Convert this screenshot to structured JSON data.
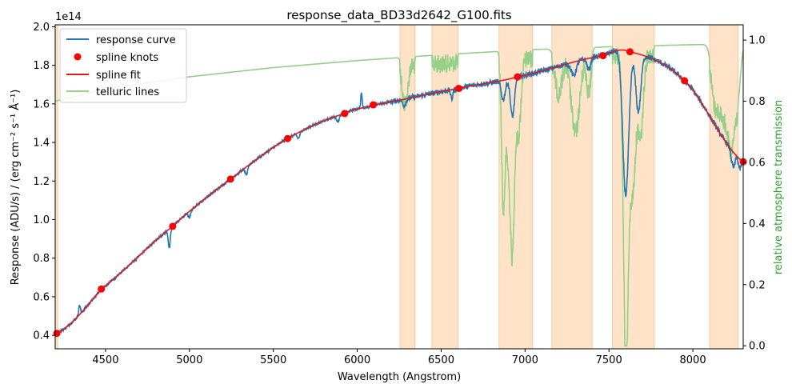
{
  "chart_data": {
    "type": "line",
    "title": "response_data_BD33d2642_G100.fits",
    "xlabel": "Wavelength (Angstrom)",
    "ylabel": "Response (ADU/s) / (erg cm⁻² s⁻¹ Å⁻¹)",
    "y2label": "relative atmosphere transmission",
    "offset_text": "1e14",
    "xlim": [
      4200,
      8300
    ],
    "ylim": [
      0.33,
      2.01
    ],
    "y2lim": [
      -0.01,
      1.05
    ],
    "x_ticks": [
      4500,
      5000,
      5500,
      6000,
      6500,
      7000,
      7500,
      8000
    ],
    "x_tick_labels": [
      "4500",
      "5000",
      "5500",
      "6000",
      "6500",
      "7000",
      "7500",
      "8000"
    ],
    "y_ticks": [
      0.4,
      0.6,
      0.8,
      1.0,
      1.2,
      1.4,
      1.6,
      1.8,
      2.0
    ],
    "y_tick_labels": [
      "0.4",
      "0.6",
      "0.8",
      "1.0",
      "1.2",
      "1.4",
      "1.6",
      "1.8",
      "2.0"
    ],
    "y2_ticks": [
      0.0,
      0.2,
      0.4,
      0.6,
      0.8,
      1.0
    ],
    "y2_tick_labels": [
      "0.0",
      "0.2",
      "0.4",
      "0.6",
      "0.8",
      "1.0"
    ],
    "legend": {
      "position": "top-left",
      "entries": [
        {
          "label": "response curve",
          "color": "#1f77b4",
          "style": "line"
        },
        {
          "label": "spline knots",
          "color": "#ff0000",
          "style": "marker"
        },
        {
          "label": "spline fit",
          "color": "#e31a1c",
          "style": "line"
        },
        {
          "label": "telluric lines",
          "color": "#95cf8a",
          "style": "line"
        }
      ]
    },
    "colors": {
      "response": "#1f77b4",
      "spline": "#e31a1c",
      "knots": "#ff0000",
      "telluric": "#95cf8a",
      "telluric_label": "#2ca02c",
      "bands": "#fdd9b5"
    },
    "masked_bands": [
      [
        4200,
        4215
      ],
      [
        6255,
        6345
      ],
      [
        6445,
        6600
      ],
      [
        6845,
        7045
      ],
      [
        7160,
        7400
      ],
      [
        7520,
        7770
      ],
      [
        8100,
        8270
      ]
    ],
    "spline_knots": {
      "x": [
        4210,
        4475,
        4900,
        5245,
        5585,
        5925,
        6095,
        6605,
        6955,
        7465,
        7625,
        7950,
        8300
      ],
      "y": [
        0.41,
        0.64,
        0.965,
        1.21,
        1.42,
        1.55,
        1.595,
        1.68,
        1.74,
        1.85,
        1.87,
        1.72,
        1.3
      ]
    },
    "response_features": [
      {
        "x": 4345,
        "dy": 0.05,
        "w": 5
      },
      {
        "x": 4880,
        "dy": -0.1,
        "w": 6
      },
      {
        "x": 5000,
        "dy": -0.03,
        "w": 8
      },
      {
        "x": 5340,
        "dy": -0.04,
        "w": 8
      },
      {
        "x": 5650,
        "dy": -0.03,
        "w": 8
      },
      {
        "x": 5885,
        "dy": -0.03,
        "w": 8
      },
      {
        "x": 6025,
        "dy": 0.08,
        "w": 4
      },
      {
        "x": 6280,
        "dy": -0.03,
        "w": 10
      },
      {
        "x": 6563,
        "dy": -0.05,
        "w": 6
      },
      {
        "x": 6870,
        "dy": -0.1,
        "w": 12
      },
      {
        "x": 6925,
        "dy": -0.2,
        "w": 12
      },
      {
        "x": 7290,
        "dy": -0.07,
        "w": 15
      },
      {
        "x": 7380,
        "dy": -0.06,
        "w": 10
      },
      {
        "x": 7600,
        "dy": -0.75,
        "w": 18
      },
      {
        "x": 7675,
        "dy": -0.3,
        "w": 15
      },
      {
        "x": 8240,
        "dy": -0.08,
        "w": 10
      },
      {
        "x": 8280,
        "dy": -0.05,
        "w": 8
      }
    ],
    "telluric_baseline": {
      "x": [
        4200,
        4500,
        5000,
        5500,
        6000,
        6500,
        7000,
        7500,
        8000,
        8300
      ],
      "y": [
        0.8,
        0.84,
        0.88,
        0.91,
        0.933,
        0.952,
        0.968,
        0.978,
        0.985,
        0.988
      ]
    },
    "telluric_features": [
      {
        "x": 6280,
        "dy": -0.12,
        "w": 12
      },
      {
        "x": 6300,
        "dy": -0.06,
        "w": 8
      },
      {
        "x": 6870,
        "dy": -0.45,
        "w": 10
      },
      {
        "x": 6900,
        "dy": -0.3,
        "w": 15
      },
      {
        "x": 6925,
        "dy": -0.55,
        "w": 12
      },
      {
        "x": 6960,
        "dy": -0.25,
        "w": 15
      },
      {
        "x": 7200,
        "dy": -0.12,
        "w": 20
      },
      {
        "x": 7300,
        "dy": -0.25,
        "w": 25
      },
      {
        "x": 7380,
        "dy": -0.12,
        "w": 12
      },
      {
        "x": 7600,
        "dy": -0.97,
        "w": 14
      },
      {
        "x": 7640,
        "dy": -0.45,
        "w": 20
      },
      {
        "x": 7690,
        "dy": -0.25,
        "w": 15
      },
      {
        "x": 8130,
        "dy": -0.15,
        "w": 20
      },
      {
        "x": 8180,
        "dy": -0.2,
        "w": 25
      },
      {
        "x": 8230,
        "dy": -0.3,
        "w": 20
      },
      {
        "x": 8270,
        "dy": -0.15,
        "w": 15
      }
    ]
  }
}
